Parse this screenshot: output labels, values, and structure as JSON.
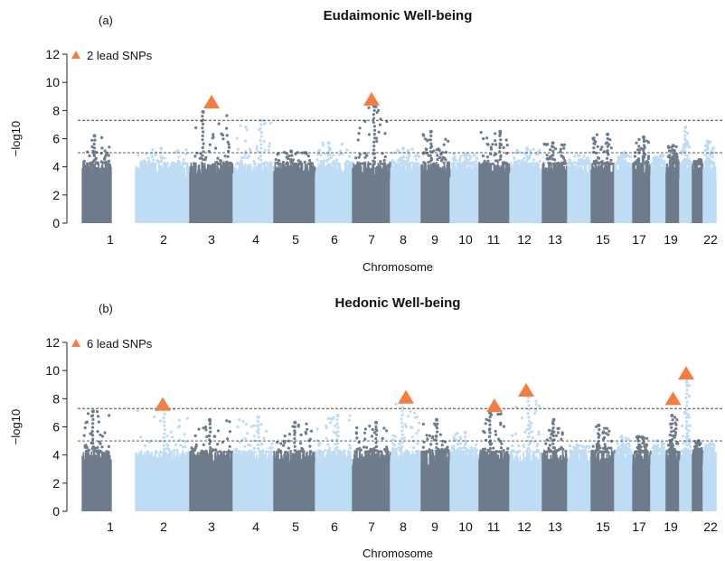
{
  "chart_data": [
    {
      "type": "scatter",
      "panel_label": "(a)",
      "title": "Eudaimonic Well-being",
      "xlabel": "Chromosome",
      "ylabel": "−log10",
      "ylim": [
        0,
        12
      ],
      "yticks": [
        0,
        2,
        4,
        6,
        8,
        10,
        12
      ],
      "x_tick_labels": [
        "1",
        "2",
        "3",
        "4",
        "5",
        "6",
        "7",
        "8",
        "9",
        "10",
        "11",
        "12",
        "13",
        "15",
        "17",
        "19",
        "22"
      ],
      "threshold_lines": [
        7.3,
        5.0
      ],
      "legend": {
        "label": "2 lead SNPs",
        "position": "top-left"
      },
      "chromosome_colors": [
        "#6e7b8b",
        "#bfdcf5"
      ],
      "lead_snp_color": "#f47d42",
      "chromosome_peaks": [
        {
          "chr": 1,
          "peak": 6.2
        },
        {
          "chr": 2,
          "peak": 5.3
        },
        {
          "chr": 3,
          "peak": 7.9
        },
        {
          "chr": 4,
          "peak": 7.3
        },
        {
          "chr": 5,
          "peak": 5.1
        },
        {
          "chr": 6,
          "peak": 5.7
        },
        {
          "chr": 7,
          "peak": 8.3
        },
        {
          "chr": 8,
          "peak": 5.3
        },
        {
          "chr": 9,
          "peak": 6.5
        },
        {
          "chr": 10,
          "peak": 4.9
        },
        {
          "chr": 11,
          "peak": 6.5
        },
        {
          "chr": 12,
          "peak": 5.3
        },
        {
          "chr": 13,
          "peak": 5.7
        },
        {
          "chr": 14,
          "peak": 4.8
        },
        {
          "chr": 15,
          "peak": 6.3
        },
        {
          "chr": 16,
          "peak": 5.0
        },
        {
          "chr": 17,
          "peak": 6.1
        },
        {
          "chr": 18,
          "peak": 4.8
        },
        {
          "chr": 19,
          "peak": 5.5
        },
        {
          "chr": 20,
          "peak": 6.8
        },
        {
          "chr": 21,
          "peak": 4.5
        },
        {
          "chr": 22,
          "peak": 5.8
        }
      ],
      "lead_snps": [
        {
          "chr": 3,
          "y": 8.6
        },
        {
          "chr": 7,
          "y": 8.8
        }
      ]
    },
    {
      "type": "scatter",
      "panel_label": "(b)",
      "title": "Hedonic Well-being",
      "xlabel": "Chromosome",
      "ylabel": "−log10",
      "ylim": [
        0,
        12
      ],
      "yticks": [
        0,
        2,
        4,
        6,
        8,
        10,
        12
      ],
      "x_tick_labels": [
        "1",
        "2",
        "3",
        "4",
        "5",
        "6",
        "7",
        "8",
        "9",
        "10",
        "11",
        "12",
        "13",
        "15",
        "17",
        "19",
        "22"
      ],
      "threshold_lines": [
        7.3,
        5.0
      ],
      "legend": {
        "label": "6 lead SNPs",
        "position": "top-left"
      },
      "chromosome_colors": [
        "#6e7b8b",
        "#bfdcf5"
      ],
      "lead_snp_color": "#f47d42",
      "chromosome_peaks": [
        {
          "chr": 1,
          "peak": 7.1
        },
        {
          "chr": 2,
          "peak": 7.5
        },
        {
          "chr": 3,
          "peak": 6.5
        },
        {
          "chr": 4,
          "peak": 6.7
        },
        {
          "chr": 5,
          "peak": 6.3
        },
        {
          "chr": 6,
          "peak": 6.8
        },
        {
          "chr": 7,
          "peak": 6.3
        },
        {
          "chr": 8,
          "peak": 7.7
        },
        {
          "chr": 9,
          "peak": 6.5
        },
        {
          "chr": 10,
          "peak": 5.6
        },
        {
          "chr": 11,
          "peak": 7.0
        },
        {
          "chr": 12,
          "peak": 8.1
        },
        {
          "chr": 13,
          "peak": 6.5
        },
        {
          "chr": 14,
          "peak": 4.7
        },
        {
          "chr": 15,
          "peak": 6.1
        },
        {
          "chr": 16,
          "peak": 5.3
        },
        {
          "chr": 17,
          "peak": 5.3
        },
        {
          "chr": 18,
          "peak": 5.0
        },
        {
          "chr": 19,
          "peak": 6.8
        },
        {
          "chr": 20,
          "peak": 9.2
        },
        {
          "chr": 21,
          "peak": 5.0
        },
        {
          "chr": 22,
          "peak": 4.8
        }
      ],
      "lead_snps": [
        {
          "chr": 2,
          "y": 7.6
        },
        {
          "chr": 8,
          "y": 8.1
        },
        {
          "chr": 11,
          "y": 7.5
        },
        {
          "chr": 12,
          "y": 8.6
        },
        {
          "chr": 19,
          "y": 8.0
        },
        {
          "chr": 20,
          "y": 9.8
        }
      ]
    }
  ]
}
